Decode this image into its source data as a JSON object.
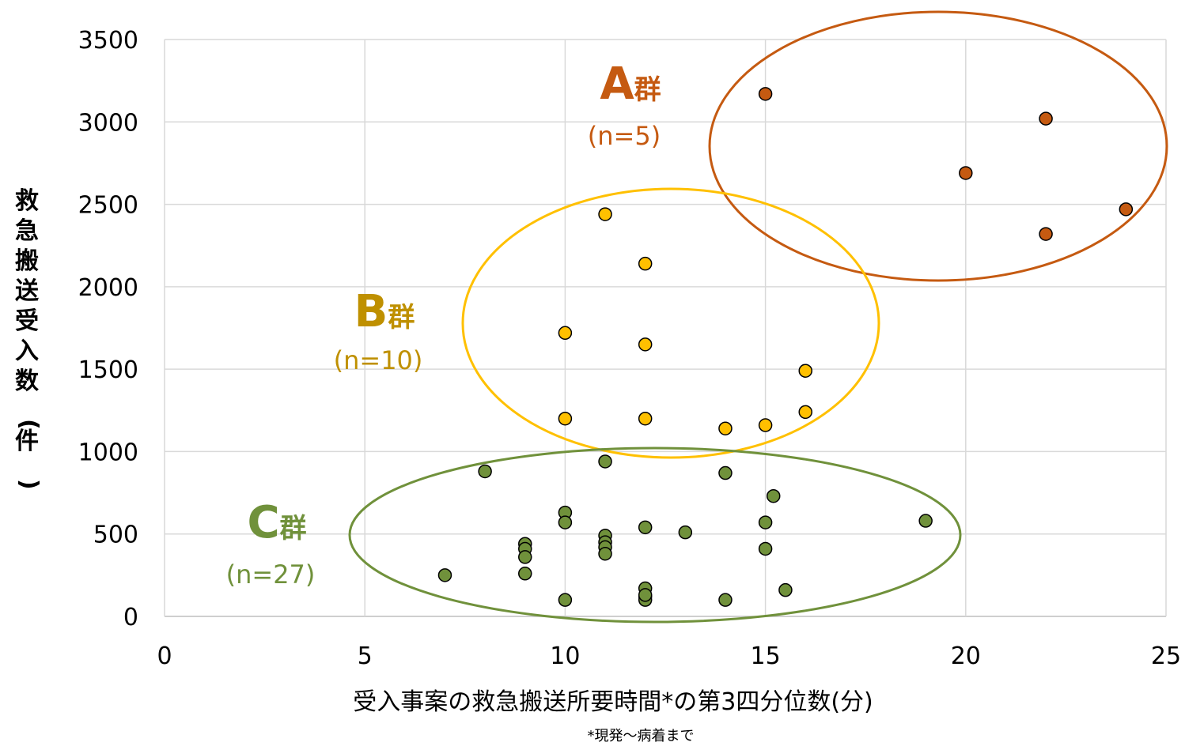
{
  "chart_data": {
    "type": "scatter",
    "xlabel": "受入事案の救急搬送所要時間*の第3四分位数(分)",
    "ylabel": "救急搬送受入数(件)",
    "note": "*現発～病着まで",
    "xlim": [
      0,
      25
    ],
    "ylim": [
      0,
      3500
    ],
    "xticks": [
      "0",
      "5",
      "10",
      "15",
      "20",
      "25"
    ],
    "yticks": [
      "0",
      "500",
      "1000",
      "1500",
      "2000",
      "2500",
      "3000",
      "3500"
    ],
    "grid": true,
    "groups": [
      {
        "letter": "A",
        "suffix": "群",
        "count": "(n=5)",
        "color": "#C55A11",
        "ellipse_color": "#C55A11",
        "points": [
          [
            15,
            3170
          ],
          [
            20,
            2690
          ],
          [
            22,
            3020
          ],
          [
            22,
            2320
          ],
          [
            24,
            2470
          ]
        ]
      },
      {
        "letter": "B",
        "suffix": "群",
        "count": "(n=10)",
        "color": "#FFC000",
        "ellipse_color": "#FFC000",
        "label_color": "#BF9000",
        "points": [
          [
            11,
            2440
          ],
          [
            12,
            2140
          ],
          [
            10,
            1720
          ],
          [
            12,
            1650
          ],
          [
            16,
            1490
          ],
          [
            10,
            1200
          ],
          [
            12,
            1200
          ],
          [
            14,
            1140
          ],
          [
            15,
            1160
          ],
          [
            16,
            1240
          ]
        ]
      },
      {
        "letter": "C",
        "suffix": "群",
        "count": "(n=27)",
        "color": "#70913B",
        "ellipse_color": "#70913B",
        "label_color": "#70913B",
        "points": [
          [
            7,
            250
          ],
          [
            8,
            880
          ],
          [
            9,
            440
          ],
          [
            9,
            410
          ],
          [
            9,
            360
          ],
          [
            9,
            260
          ],
          [
            10,
            630
          ],
          [
            10,
            570
          ],
          [
            10,
            100
          ],
          [
            11,
            940
          ],
          [
            11,
            490
          ],
          [
            11,
            450
          ],
          [
            11,
            420
          ],
          [
            11,
            380
          ],
          [
            12,
            540
          ],
          [
            12,
            170
          ],
          [
            12,
            120
          ],
          [
            12,
            100
          ],
          [
            13,
            510
          ],
          [
            14,
            870
          ],
          [
            14,
            100
          ],
          [
            15,
            570
          ],
          [
            15,
            410
          ],
          [
            15.2,
            730
          ],
          [
            15.5,
            160
          ],
          [
            19,
            580
          ],
          [
            12,
            130
          ]
        ]
      }
    ]
  }
}
